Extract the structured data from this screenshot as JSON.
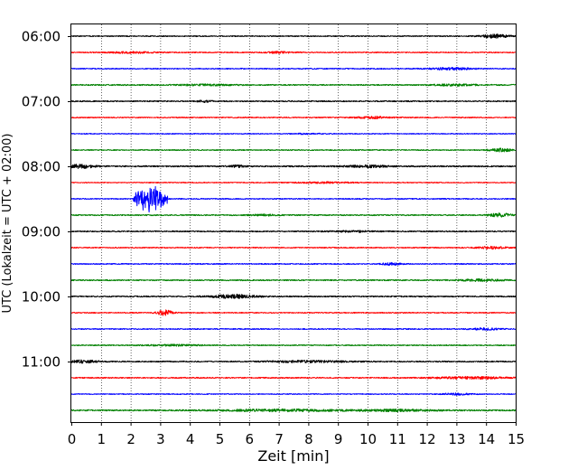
{
  "chart_data": {
    "type": "line",
    "title": "",
    "xlabel": "Zeit  [min]",
    "ylabel": "UTC (Lokalzeit = UTC + 02:00)",
    "xlim": [
      0,
      15
    ],
    "x_ticks": [
      "0",
      "1",
      "2",
      "3",
      "4",
      "5",
      "6",
      "7",
      "8",
      "9",
      "10",
      "11",
      "12",
      "13",
      "14",
      "15"
    ],
    "y_tick_labels": [
      "06:00",
      "07:00",
      "08:00",
      "09:00",
      "10:00",
      "11:00"
    ],
    "grid": "vertical dotted lines at each minute",
    "trace_colors": [
      "#000000",
      "#ff0000",
      "#0000ff",
      "#008000"
    ],
    "traces": [
      {
        "start": "06:00",
        "color": "#000000",
        "noise": 0.35,
        "bursts": [
          {
            "t": 14.3,
            "w": 0.9,
            "a": 1.2
          }
        ]
      },
      {
        "start": "06:15",
        "color": "#ff0000",
        "noise": 0.35,
        "bursts": [
          {
            "t": 2.0,
            "w": 1.5,
            "a": 0.5
          },
          {
            "t": 7.0,
            "w": 1.0,
            "a": 0.5
          }
        ]
      },
      {
        "start": "06:30",
        "color": "#0000ff",
        "noise": 0.35,
        "bursts": [
          {
            "t": 12.8,
            "w": 1.5,
            "a": 0.7
          }
        ]
      },
      {
        "start": "06:45",
        "color": "#008000",
        "noise": 0.4,
        "bursts": [
          {
            "t": 4.5,
            "w": 2.0,
            "a": 0.4
          },
          {
            "t": 13.0,
            "w": 1.5,
            "a": 0.5
          }
        ]
      },
      {
        "start": "07:00",
        "color": "#000000",
        "noise": 0.4,
        "bursts": [
          {
            "t": 4.5,
            "w": 0.5,
            "a": 0.6
          }
        ]
      },
      {
        "start": "07:15",
        "color": "#ff0000",
        "noise": 0.35,
        "bursts": [
          {
            "t": 10.2,
            "w": 1.2,
            "a": 0.6
          }
        ]
      },
      {
        "start": "07:30",
        "color": "#0000ff",
        "noise": 0.3,
        "bursts": [
          {
            "t": 8.0,
            "w": 1.0,
            "a": 0.3
          }
        ]
      },
      {
        "start": "07:45",
        "color": "#008000",
        "noise": 0.35,
        "bursts": [
          {
            "t": 14.5,
            "w": 0.8,
            "a": 1.0
          }
        ]
      },
      {
        "start": "08:00",
        "color": "#000000",
        "noise": 0.45,
        "bursts": [
          {
            "t": 0.3,
            "w": 0.9,
            "a": 1.3
          },
          {
            "t": 5.6,
            "w": 0.5,
            "a": 0.7
          },
          {
            "t": 10.0,
            "w": 1.5,
            "a": 0.7
          }
        ]
      },
      {
        "start": "08:15",
        "color": "#ff0000",
        "noise": 0.3,
        "bursts": [
          {
            "t": 8.5,
            "w": 2.0,
            "a": 0.4
          }
        ]
      },
      {
        "start": "08:30",
        "color": "#0000ff",
        "noise": 0.35,
        "bursts": [],
        "event": {
          "t1": 2.1,
          "t2": 3.25,
          "a": 9
        }
      },
      {
        "start": "08:45",
        "color": "#008000",
        "noise": 0.4,
        "bursts": [
          {
            "t": 14.5,
            "w": 0.8,
            "a": 1.1
          },
          {
            "t": 6.5,
            "w": 1.0,
            "a": 0.4
          }
        ]
      },
      {
        "start": "09:00",
        "color": "#000000",
        "noise": 0.4,
        "bursts": [
          {
            "t": 9.5,
            "w": 1.5,
            "a": 0.5
          }
        ]
      },
      {
        "start": "09:15",
        "color": "#ff0000",
        "noise": 0.35,
        "bursts": [
          {
            "t": 14.2,
            "w": 1.0,
            "a": 0.8
          }
        ]
      },
      {
        "start": "09:30",
        "color": "#0000ff",
        "noise": 0.35,
        "bursts": [
          {
            "t": 10.8,
            "w": 0.6,
            "a": 0.8
          }
        ]
      },
      {
        "start": "09:45",
        "color": "#008000",
        "noise": 0.4,
        "bursts": [
          {
            "t": 13.8,
            "w": 1.5,
            "a": 0.6
          }
        ]
      },
      {
        "start": "10:00",
        "color": "#000000",
        "noise": 0.4,
        "bursts": [
          {
            "t": 5.5,
            "w": 1.5,
            "a": 1.3
          }
        ]
      },
      {
        "start": "10:15",
        "color": "#ff0000",
        "noise": 0.35,
        "bursts": [
          {
            "t": 3.15,
            "w": 0.5,
            "a": 1.8
          }
        ]
      },
      {
        "start": "10:30",
        "color": "#0000ff",
        "noise": 0.35,
        "bursts": [
          {
            "t": 14.0,
            "w": 1.0,
            "a": 0.6
          }
        ]
      },
      {
        "start": "10:45",
        "color": "#008000",
        "noise": 0.35,
        "bursts": [
          {
            "t": 3.5,
            "w": 2.0,
            "a": 0.4
          }
        ]
      },
      {
        "start": "11:00",
        "color": "#000000",
        "noise": 0.4,
        "bursts": [
          {
            "t": 0.4,
            "w": 1.0,
            "a": 0.9
          },
          {
            "t": 8.0,
            "w": 2.5,
            "a": 0.6
          }
        ]
      },
      {
        "start": "11:15",
        "color": "#ff0000",
        "noise": 0.4,
        "bursts": [
          {
            "t": 13.5,
            "w": 2.5,
            "a": 0.7
          }
        ]
      },
      {
        "start": "11:30",
        "color": "#0000ff",
        "noise": 0.3,
        "bursts": [
          {
            "t": 13.0,
            "w": 1.0,
            "a": 0.6
          }
        ]
      },
      {
        "start": "11:45",
        "color": "#008000",
        "noise": 0.45,
        "bursts": [
          {
            "t": 7.0,
            "w": 4.0,
            "a": 0.6
          },
          {
            "t": 11.0,
            "w": 3.0,
            "a": 0.5
          }
        ]
      }
    ]
  }
}
